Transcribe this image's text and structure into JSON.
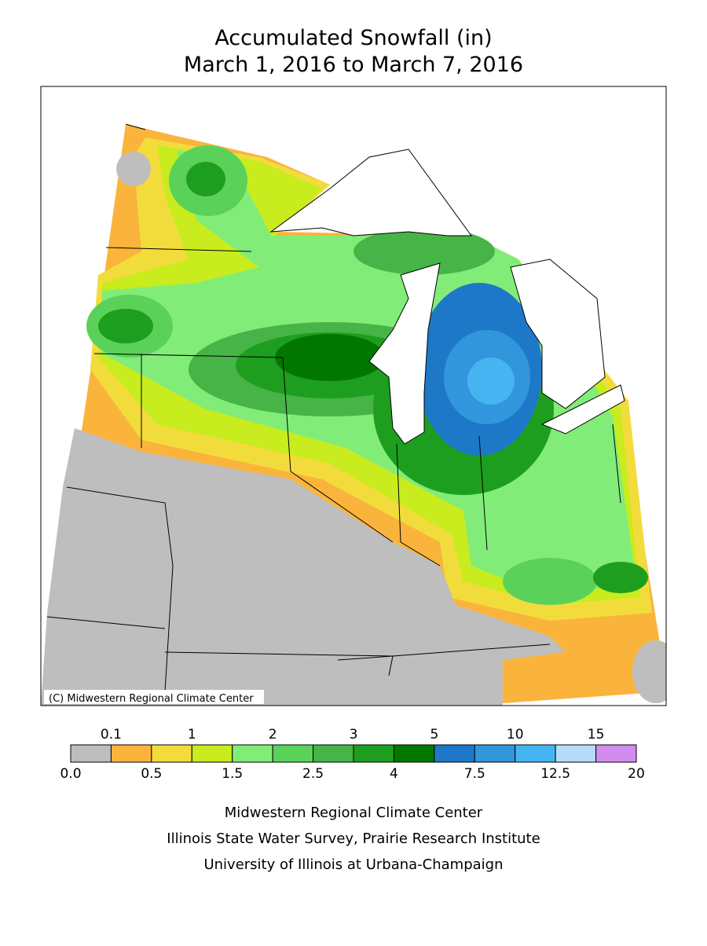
{
  "title": [
    "Accumulated Snowfall (in)",
    "March 1, 2016 to March 7, 2016"
  ],
  "copyright": "(C) Midwestern Regional Climate Center",
  "legend": {
    "colors": [
      "#bebebe",
      "#fab43c",
      "#f2dc3c",
      "#c8ec1e",
      "#82ec78",
      "#5ad25a",
      "#46b446",
      "#1e9e1e",
      "#007800",
      "#1e78c8",
      "#3296dc",
      "#46b4f0",
      "#b4dcfa",
      "#d28cf0"
    ],
    "boundaries": [
      {
        "value": 0,
        "label": "0.0"
      },
      0.1,
      0.5,
      1,
      1.5,
      2,
      2.5,
      3,
      4,
      5,
      7.5,
      10,
      12.5,
      15,
      20
    ]
  },
  "footer": [
    "Midwestern Regional Climate Center",
    "Illinois State Water Survey, Prairie Research Institute",
    "University of Illinois at Urbana-Champaign"
  ]
}
